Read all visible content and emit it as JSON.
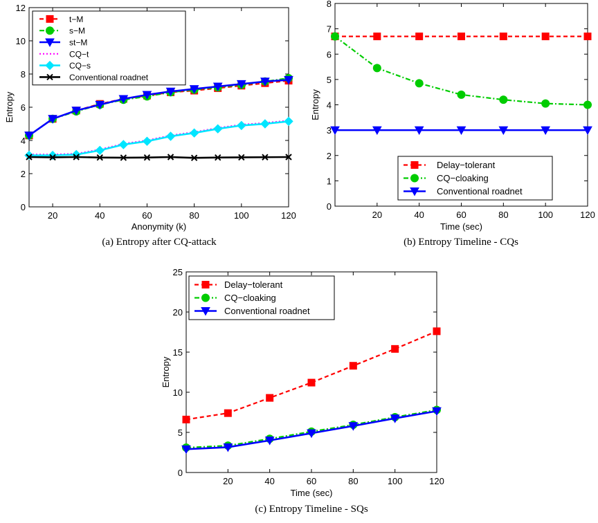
{
  "chart_data": [
    {
      "id": "a",
      "type": "line",
      "caption": "(a)  Entropy after CQ-attack",
      "xlabel": "Anonymity (k)",
      "ylabel": "Entropy",
      "xlim": [
        10,
        120
      ],
      "ylim": [
        0,
        12
      ],
      "xticks": [
        20,
        40,
        60,
        80,
        100,
        120
      ],
      "yticks": [
        0,
        2,
        4,
        6,
        8,
        10,
        12
      ],
      "legend_position": "top-left",
      "series": [
        {
          "name": "t−M",
          "color": "#ff0000",
          "dash": "dashed",
          "marker": "square",
          "x": [
            10,
            20,
            30,
            40,
            50,
            60,
            70,
            80,
            90,
            100,
            110,
            120
          ],
          "y": [
            4.3,
            5.3,
            5.8,
            6.2,
            6.5,
            6.7,
            6.9,
            7.0,
            7.15,
            7.3,
            7.45,
            7.6
          ]
        },
        {
          "name": "s−M",
          "color": "#00cc00",
          "dash": "dashdot",
          "marker": "circle",
          "x": [
            10,
            20,
            30,
            40,
            50,
            60,
            70,
            80,
            90,
            100,
            110,
            120
          ],
          "y": [
            4.3,
            5.3,
            5.75,
            6.15,
            6.45,
            6.65,
            6.9,
            7.05,
            7.2,
            7.35,
            7.55,
            7.75
          ]
        },
        {
          "name": "st−M",
          "color": "#0000ff",
          "dash": "solid",
          "marker": "triangle-down",
          "x": [
            10,
            20,
            30,
            40,
            50,
            60,
            70,
            80,
            90,
            100,
            110,
            120
          ],
          "y": [
            4.3,
            5.3,
            5.8,
            6.15,
            6.5,
            6.75,
            6.95,
            7.1,
            7.25,
            7.4,
            7.55,
            7.65
          ]
        },
        {
          "name": "CQ−t",
          "color": "#ff00ff",
          "dash": "dotted",
          "marker": "none",
          "x": [
            10,
            20,
            30,
            40,
            50,
            60,
            70,
            80,
            90,
            100,
            110,
            120
          ],
          "y": [
            3.15,
            3.15,
            3.2,
            3.45,
            3.8,
            4.0,
            4.3,
            4.5,
            4.75,
            4.95,
            5.05,
            5.2
          ]
        },
        {
          "name": "CQ−s",
          "color": "#00e5ff",
          "dash": "solid",
          "marker": "diamond",
          "x": [
            10,
            20,
            30,
            40,
            50,
            60,
            70,
            80,
            90,
            100,
            110,
            120
          ],
          "y": [
            3.1,
            3.1,
            3.15,
            3.4,
            3.75,
            3.95,
            4.25,
            4.45,
            4.7,
            4.9,
            5.0,
            5.15
          ]
        },
        {
          "name": "Conventional roadnet",
          "color": "#000000",
          "dash": "solid",
          "marker": "x",
          "x": [
            10,
            20,
            30,
            40,
            50,
            60,
            70,
            80,
            90,
            100,
            110,
            120
          ],
          "y": [
            3.0,
            2.98,
            3.0,
            2.97,
            2.96,
            2.97,
            3.0,
            2.95,
            2.97,
            2.98,
            2.99,
            3.0
          ]
        }
      ]
    },
    {
      "id": "b",
      "type": "line",
      "caption": "(b)  Entropy Timeline - CQs",
      "xlabel": "Time (sec)",
      "ylabel": "Entropy",
      "xlim": [
        0,
        120
      ],
      "ylim": [
        0,
        8
      ],
      "xticks": [
        20,
        40,
        60,
        80,
        100,
        120
      ],
      "yticks": [
        0,
        1,
        2,
        3,
        4,
        5,
        6,
        7,
        8
      ],
      "legend_position": "bottom-right",
      "series": [
        {
          "name": "Delay−tolerant",
          "color": "#ff0000",
          "dash": "dashed",
          "marker": "square",
          "x": [
            0,
            20,
            40,
            60,
            80,
            100,
            120
          ],
          "y": [
            6.7,
            6.7,
            6.7,
            6.7,
            6.7,
            6.7,
            6.7
          ]
        },
        {
          "name": "CQ−cloaking",
          "color": "#00cc00",
          "dash": "dashdot",
          "marker": "circle",
          "x": [
            0,
            20,
            40,
            60,
            80,
            100,
            120
          ],
          "y": [
            6.7,
            5.45,
            4.85,
            4.4,
            4.2,
            4.05,
            4.0
          ]
        },
        {
          "name": "Conventional roadnet",
          "color": "#0000ff",
          "dash": "solid",
          "marker": "triangle-down",
          "x": [
            0,
            20,
            40,
            60,
            80,
            100,
            120
          ],
          "y": [
            3.0,
            3.0,
            3.0,
            3.0,
            3.0,
            3.0,
            3.0
          ]
        }
      ]
    },
    {
      "id": "c",
      "type": "line",
      "caption": "(c)  Entropy Timeline - SQs",
      "xlabel": "Time (sec)",
      "ylabel": "Entropy",
      "xlim": [
        0,
        120
      ],
      "ylim": [
        0,
        25
      ],
      "xticks": [
        20,
        40,
        60,
        80,
        100,
        120
      ],
      "yticks": [
        0,
        5,
        10,
        15,
        20,
        25
      ],
      "legend_position": "top-left",
      "series": [
        {
          "name": "Delay−tolerant",
          "color": "#ff0000",
          "dash": "dashed",
          "marker": "square",
          "x": [
            0,
            20,
            40,
            60,
            80,
            100,
            120
          ],
          "y": [
            6.6,
            7.4,
            9.3,
            11.2,
            13.3,
            15.4,
            17.6
          ]
        },
        {
          "name": "CQ−cloaking",
          "color": "#00cc00",
          "dash": "dashdot",
          "marker": "circle",
          "x": [
            0,
            20,
            40,
            60,
            80,
            100,
            120
          ],
          "y": [
            3.1,
            3.35,
            4.2,
            5.1,
            5.95,
            6.9,
            7.8
          ]
        },
        {
          "name": "Conventional roadnet",
          "color": "#0000ff",
          "dash": "solid",
          "marker": "triangle-down",
          "x": [
            0,
            20,
            40,
            60,
            80,
            100,
            120
          ],
          "y": [
            2.9,
            3.15,
            4.0,
            4.9,
            5.8,
            6.75,
            7.65
          ]
        }
      ]
    }
  ]
}
